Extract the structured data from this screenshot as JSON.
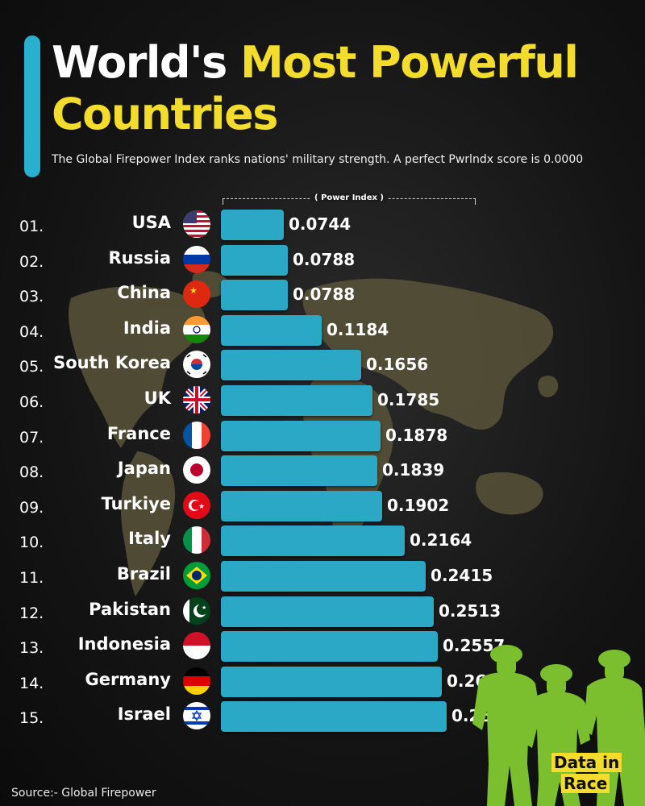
{
  "header": {
    "title_white": "World's",
    "title_yellow_1": "Most Powerful",
    "title_yellow_2": "Countries",
    "subtitle": "The Global Firepower Index ranks nations' military strength. A perfect Pwrlndx score is 0.0000"
  },
  "footer": {
    "source": "Source:- Global Firepower"
  },
  "logo": {
    "line1": "Data in",
    "line2": "Race"
  },
  "colors": {
    "bar": "#2aa8c6",
    "accent": "#2ab0cf",
    "title_yellow": "#f3dc2c",
    "map": "#585338"
  },
  "chart_data": {
    "type": "bar",
    "orientation": "horizontal",
    "title": "World's Most Powerful Countries",
    "xlabel": "( Power Index )",
    "ylabel": "",
    "xlim": [
      0,
      0.2661
    ],
    "grid": false,
    "legend": "none",
    "ranks": [
      "01.",
      "02.",
      "03.",
      "04.",
      "05.",
      "06.",
      "07.",
      "08.",
      "09.",
      "10.",
      "11.",
      "12.",
      "13.",
      "14.",
      "15."
    ],
    "categories": [
      "USA",
      "Russia",
      "China",
      "India",
      "South Korea",
      "UK",
      "France",
      "Japan",
      "Turkiye",
      "Italy",
      "Brazil",
      "Pakistan",
      "Indonesia",
      "Germany",
      "Israel"
    ],
    "values": [
      0.0744,
      0.0788,
      0.0788,
      0.1184,
      0.1656,
      0.1785,
      0.1878,
      0.1839,
      0.1902,
      0.2164,
      0.2415,
      0.2513,
      0.2557,
      0.2601,
      0.2661
    ],
    "labels": [
      "0.0744",
      "0.0788",
      "0.0788",
      "0.1184",
      "0.1656",
      "0.1785",
      "0.1878",
      "0.1839",
      "0.1902",
      "0.2164",
      "0.2415",
      "0.2513",
      "0.2557",
      "0.2601",
      "0.2661"
    ],
    "flags": [
      "usa-flag-icon",
      "russia-flag-icon",
      "china-flag-icon",
      "india-flag-icon",
      "south-korea-flag-icon",
      "uk-flag-icon",
      "france-flag-icon",
      "japan-flag-icon",
      "turkiye-flag-icon",
      "italy-flag-icon",
      "brazil-flag-icon",
      "pakistan-flag-icon",
      "indonesia-flag-icon",
      "germany-flag-icon",
      "israel-flag-icon"
    ]
  }
}
